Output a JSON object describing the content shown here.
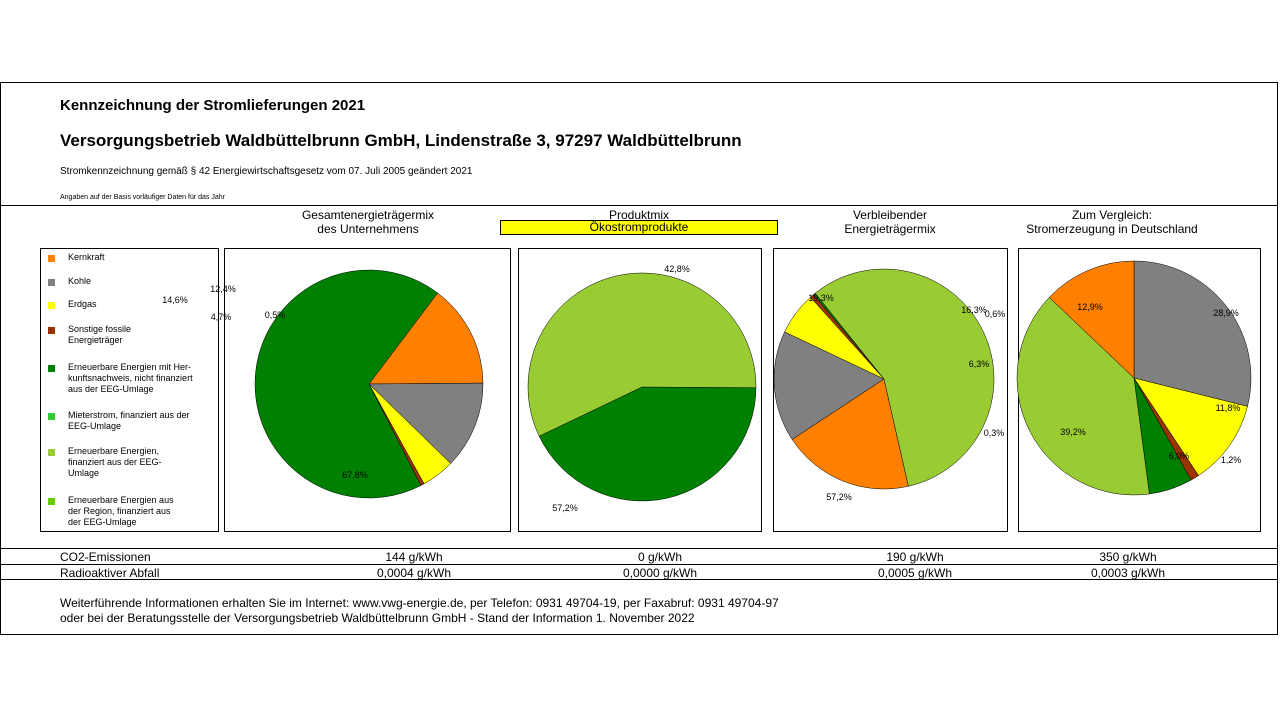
{
  "header": {
    "title": "Kennzeichnung der Stromlieferungen 2021",
    "company": "Versorgungsbetrieb Waldbüttelbrunn GmbH, Lindenstraße 3, 97297 Waldbüttelbrunn",
    "subtitle": "Stromkennzeichnung gemäß § 42 Energiewirtschaftsgesetz vom 07. Juli 2005 geändert 2021",
    "note": "Angaben auf der Basis vorläufiger Daten für das Jahr"
  },
  "columns": [
    {
      "line1": "Gesamtenergieträgermix",
      "line2": "des Unternehmens"
    },
    {
      "line1": "Produktmix",
      "line2": "Ökostromprodukte",
      "highlight": "#ffff00"
    },
    {
      "line1": "Verbleibender",
      "line2": "Energieträgermix"
    },
    {
      "line1": "Zum Vergleich:",
      "line2": "Stromerzeugung in Deutschland"
    }
  ],
  "legend": [
    {
      "label": "Kernkraft",
      "color": "#ff8000"
    },
    {
      "label": "Kohle",
      "color": "#808080"
    },
    {
      "label": "Erdgas",
      "color": "#ffff00"
    },
    {
      "label": "Sonstige fossile Energieträger",
      "color": "#993300"
    },
    {
      "label": "Erneuerbare Energien mit Her-kunftsnachweis, nicht finanziert aus der EEG-Umlage",
      "color": "#008000"
    },
    {
      "label": "Mieterstrom, finanziert aus der EEG-Umlage",
      "color": "#33cc33"
    },
    {
      "label": "Erneuerbare Energien, finanziert aus der EEG-Umlage",
      "color": "#99cc33"
    },
    {
      "label": "Erneuerbare Energien aus der Region, finanziert aus der EEG-Umlage",
      "color": "#66cc00"
    }
  ],
  "chart_data": [
    {
      "type": "pie",
      "title": "Gesamtenergieträgermix des Unternehmens",
      "slices": [
        {
          "name": "Kernkraft",
          "value": 14.6,
          "label": "14,6%",
          "color": "#ff8000"
        },
        {
          "name": "Kohle",
          "value": 12.4,
          "label": "12,4%",
          "color": "#808080"
        },
        {
          "name": "Erdgas",
          "value": 4.7,
          "label": "4,7%",
          "color": "#ffff00"
        },
        {
          "name": "Sonstige fossile Energieträger",
          "value": 0.5,
          "label": "0,5%",
          "color": "#993300"
        },
        {
          "name": "Erneuerbare Energien mit Herkunftsnachweis",
          "value": 67.8,
          "label": "67,8%",
          "color": "#008000"
        }
      ]
    },
    {
      "type": "pie",
      "title": "Produktmix Ökostromprodukte",
      "slices": [
        {
          "name": "Erneuerbare Energien mit Herkunftsnachweis",
          "value": 42.8,
          "label": "42,8%",
          "color": "#008000"
        },
        {
          "name": "Erneuerbare Energien, finanziert aus der EEG-Umlage",
          "value": 57.2,
          "label": "57,2%",
          "color": "#99cc33"
        }
      ]
    },
    {
      "type": "pie",
      "title": "Verbleibender Energieträgermix",
      "slices": [
        {
          "name": "Kernkraft",
          "value": 19.3,
          "label": "19,3%",
          "color": "#ff8000"
        },
        {
          "name": "Kohle",
          "value": 16.3,
          "label": "16,3%",
          "color": "#808080"
        },
        {
          "name": "Erdgas",
          "value": 6.3,
          "label": "6,3%",
          "color": "#ffff00"
        },
        {
          "name": "Sonstige fossile Energieträger",
          "value": 0.6,
          "label": "0,6%",
          "color": "#993300"
        },
        {
          "name": "Erneuerbare Energien mit Herkunftsnachweis",
          "value": 0.3,
          "label": "0,3%",
          "color": "#008000"
        },
        {
          "name": "Erneuerbare Energien, finanziert aus der EEG-Umlage",
          "value": 57.2,
          "label": "57,2%",
          "color": "#99cc33"
        }
      ]
    },
    {
      "type": "pie",
      "title": "Zum Vergleich: Stromerzeugung in Deutschland",
      "slices": [
        {
          "name": "Kohle",
          "value": 28.9,
          "label": "28,9%",
          "color": "#808080"
        },
        {
          "name": "Erdgas",
          "value": 11.8,
          "label": "11,8%",
          "color": "#ffff00"
        },
        {
          "name": "Sonstige fossile Energieträger",
          "value": 1.2,
          "label": "1,2%",
          "color": "#993300"
        },
        {
          "name": "Erneuerbare Energien mit Herkunftsnachweis",
          "value": 6.0,
          "label": "6,0%",
          "color": "#008000"
        },
        {
          "name": "Erneuerbare Energien, finanziert aus der EEG-Umlage",
          "value": 39.2,
          "label": "39,2%",
          "color": "#99cc33"
        },
        {
          "name": "Kernkraft",
          "value": 12.9,
          "label": "12,9%",
          "color": "#ff8000"
        }
      ]
    }
  ],
  "rows": [
    {
      "label": "CO2-Emissionen",
      "values": [
        "144 g/kWh",
        "0 g/kWh",
        "190 g/kWh",
        "350 g/kWh"
      ]
    },
    {
      "label": "Radioaktiver Abfall",
      "values": [
        "0,0004 g/kWh",
        "0,0000 g/kWh",
        "0,0005 g/kWh",
        "0,0003 g/kWh"
      ]
    }
  ],
  "footer": {
    "line1": "Weiterführende Informationen erhalten Sie im Internet: www.vwg-energie.de, per Telefon: 0931 49704-19, per Faxabruf: 0931 49704-97",
    "line2": "oder bei der Beratungsstelle der Versorgungsbetrieb Waldbüttelbrunn GmbH - Stand der Information 1. November 2022"
  }
}
